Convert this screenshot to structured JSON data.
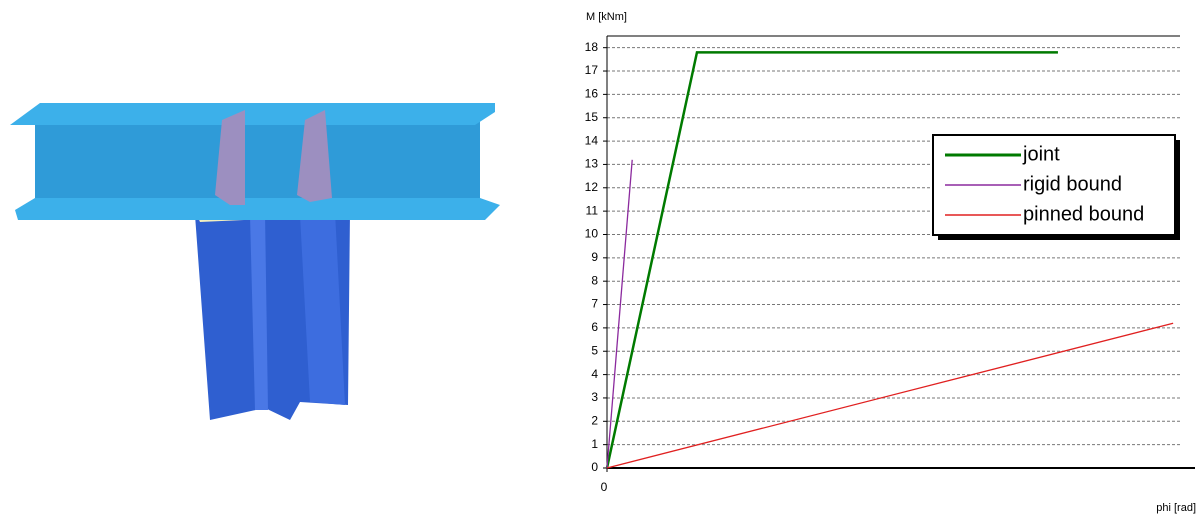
{
  "chart_data": {
    "type": "line",
    "y_label": "M [kNm]",
    "x_label": "phi [rad]",
    "xlim": [
      0,
      1
    ],
    "xticks": [
      0
    ],
    "ylim": [
      0,
      18.5
    ],
    "yticks": [
      0,
      1,
      2,
      3,
      4,
      5,
      6,
      7,
      8,
      9,
      10,
      11,
      12,
      13,
      14,
      15,
      16,
      17,
      18
    ],
    "grid": true,
    "legend": "upper right",
    "series": [
      {
        "name": "joint",
        "color": "#007a00",
        "x": [
          0,
          0.157,
          0.787
        ],
        "values": [
          0,
          17.8,
          17.8
        ]
      },
      {
        "name": "rigid bound",
        "color": "#8b2a9e",
        "x": [
          0,
          0.044
        ],
        "values": [
          0,
          13.2
        ]
      },
      {
        "name": "pinned bound",
        "color": "#e02020",
        "x": [
          0,
          0.988
        ],
        "values": [
          0,
          6.2
        ]
      }
    ]
  }
}
